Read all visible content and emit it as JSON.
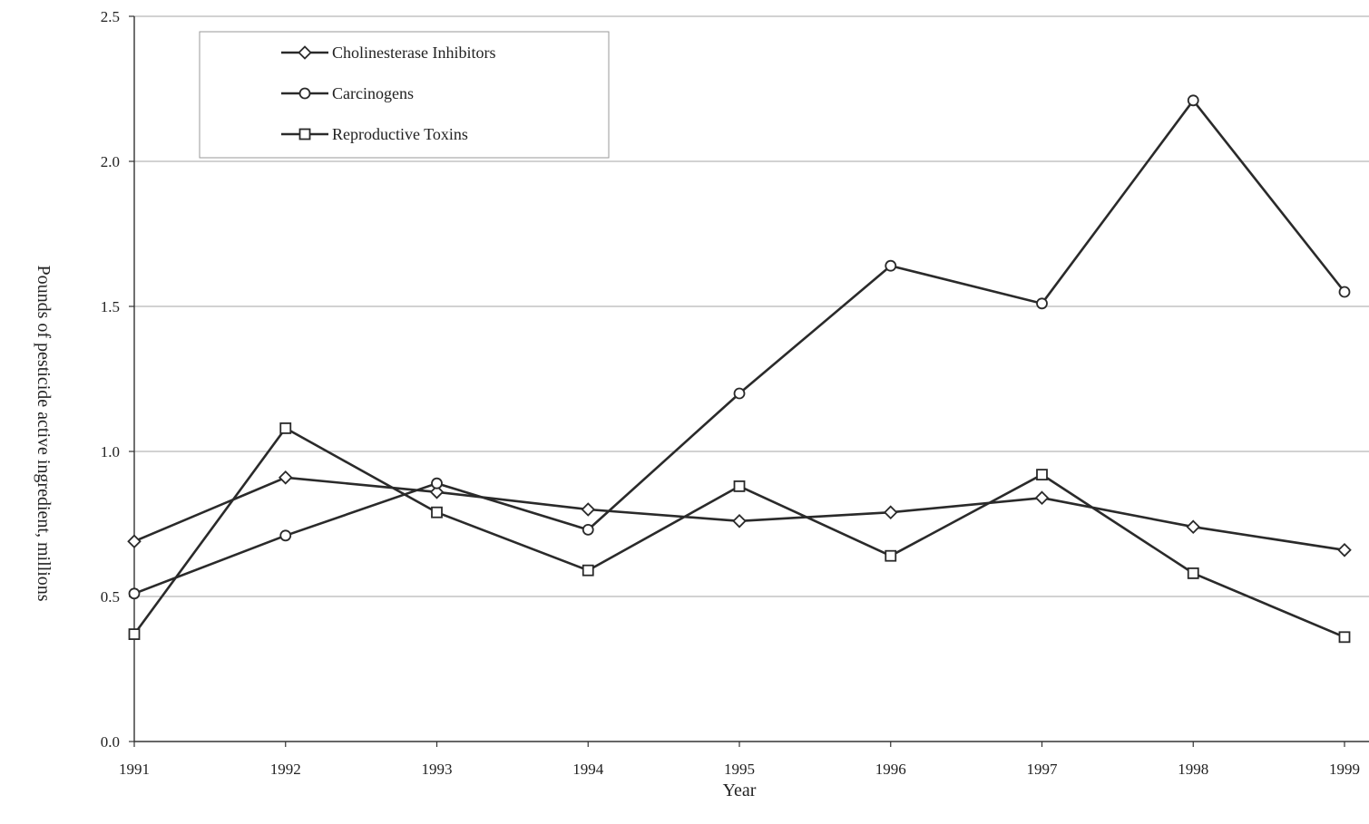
{
  "chart_data": {
    "type": "line",
    "title": "",
    "xlabel": "Year",
    "ylabel": "Pounds of pesticide active ingredient, millions",
    "x": [
      "1991",
      "1992",
      "1993",
      "1994",
      "1995",
      "1996",
      "1997",
      "1998",
      "1999"
    ],
    "ylim": [
      0.0,
      2.5
    ],
    "yticks": [
      "0.0",
      "0.5",
      "1.0",
      "1.5",
      "2.0",
      "2.5"
    ],
    "grid": true,
    "legend_position": "top-left",
    "series": [
      {
        "name": "Cholinesterase Inhibitors",
        "marker": "diamond",
        "values": [
          0.69,
          0.91,
          0.86,
          0.8,
          0.76,
          0.79,
          0.84,
          0.74,
          0.66
        ]
      },
      {
        "name": "Carcinogens",
        "marker": "circle",
        "values": [
          0.51,
          0.71,
          0.89,
          0.73,
          1.2,
          1.64,
          1.51,
          2.21,
          1.55
        ]
      },
      {
        "name": "Reproductive Toxins",
        "marker": "square",
        "values": [
          0.37,
          1.08,
          0.79,
          0.59,
          0.88,
          0.64,
          0.92,
          0.58,
          0.36
        ]
      }
    ],
    "colors": {
      "line": "#2a2a2a",
      "grid": "#b8b8b8",
      "axis": "#333333",
      "marker_fill": "#ffffff"
    }
  }
}
